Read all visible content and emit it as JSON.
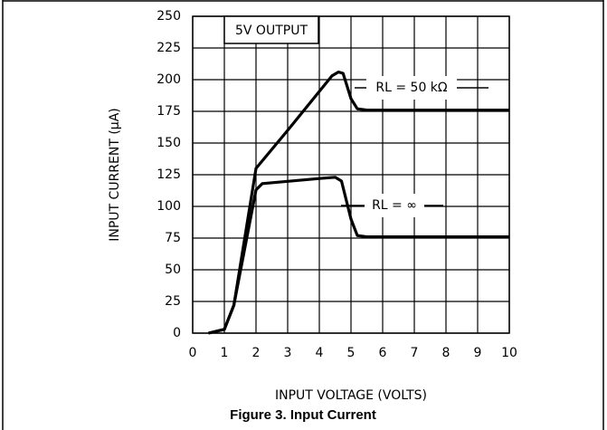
{
  "chart_data": {
    "type": "line",
    "figure_caption": "Figure 3. Input Current",
    "xlabel": "INPUT VOLTAGE (VOLTS)",
    "ylabel": "INPUT CURRENT (μA)",
    "annotation": "5V OUTPUT",
    "xlim": [
      0,
      10
    ],
    "xticks": [
      0,
      1,
      2,
      3,
      4,
      5,
      6,
      7,
      8,
      9,
      10
    ],
    "ylim": [
      0,
      250
    ],
    "yticks": [
      0,
      25,
      50,
      75,
      100,
      125,
      150,
      175,
      200,
      225,
      250
    ],
    "grid": true,
    "series": [
      {
        "name": "RL = 50 kΩ",
        "color": "#000000",
        "x": [
          0.5,
          1,
          1.3,
          2,
          3,
          4.4,
          4.6,
          4.75,
          5,
          5.2,
          5.5,
          10
        ],
        "values": [
          0,
          3,
          22,
          130,
          160,
          203,
          206,
          205,
          185,
          177,
          176,
          176
        ]
      },
      {
        "name": "RL = ∞",
        "color": "#000000",
        "x": [
          0.5,
          1,
          1.3,
          2,
          2.2,
          4,
          4.5,
          4.7,
          5,
          5.2,
          5.5,
          10
        ],
        "values": [
          0,
          3,
          22,
          113,
          118,
          122,
          123,
          120,
          90,
          77,
          76,
          76
        ]
      }
    ]
  }
}
